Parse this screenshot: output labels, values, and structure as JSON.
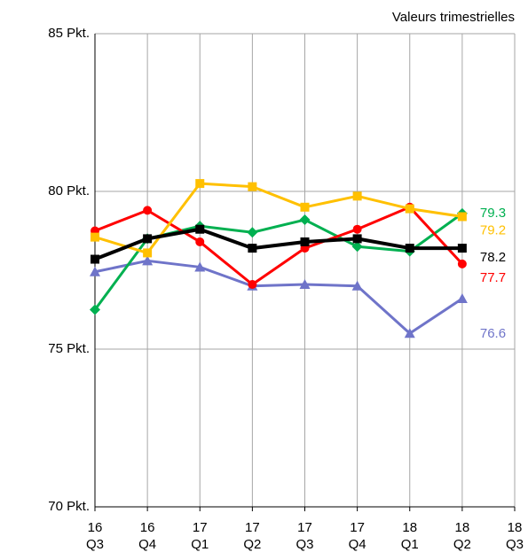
{
  "chart_data": {
    "type": "line",
    "title": "Valeurs trimestrielles",
    "categories": [
      "16 Q3",
      "16 Q4",
      "17 Q1",
      "17 Q2",
      "17 Q3",
      "17 Q4",
      "18 Q1",
      "18 Q2",
      "18 Q3"
    ],
    "ylim": [
      70,
      85
    ],
    "yticks": [
      {
        "value": 70,
        "label": "70 Pkt."
      },
      {
        "value": 75,
        "label": "75 Pkt."
      },
      {
        "value": 80,
        "label": "80 Pkt."
      },
      {
        "value": 85,
        "label": "85 Pkt."
      }
    ],
    "grid": true,
    "series": [
      {
        "color": "#6f74c9",
        "marker": "triangle",
        "values": [
          77.45,
          77.8,
          77.6,
          77.0,
          77.05,
          77.0,
          75.5,
          76.6,
          null
        ],
        "value_labels": [
          null,
          null,
          null,
          null,
          null,
          null,
          null,
          "76.6",
          null
        ]
      },
      {
        "color": "#00b050",
        "marker": "diamond",
        "values": [
          76.25,
          78.5,
          78.9,
          78.7,
          79.1,
          78.25,
          78.1,
          79.3,
          null
        ],
        "value_labels": [
          null,
          null,
          null,
          null,
          null,
          null,
          null,
          "79.3",
          null
        ]
      },
      {
        "color": "#ff0000",
        "marker": "circle",
        "values": [
          78.75,
          79.4,
          78.4,
          77.05,
          78.2,
          78.8,
          79.5,
          77.7,
          null
        ],
        "value_labels": [
          null,
          null,
          null,
          null,
          null,
          null,
          null,
          "77.7",
          null
        ]
      },
      {
        "color": "#ffc000",
        "marker": "square",
        "values": [
          78.55,
          78.05,
          80.25,
          80.15,
          79.5,
          79.85,
          79.45,
          79.2,
          null
        ],
        "value_labels": [
          null,
          null,
          null,
          null,
          null,
          null,
          null,
          "79.2",
          null
        ]
      },
      {
        "color": "#000000",
        "marker": "square",
        "width": 4,
        "values": [
          77.85,
          78.5,
          78.8,
          78.2,
          78.4,
          78.5,
          78.2,
          78.2,
          null
        ],
        "value_labels": [
          null,
          null,
          null,
          null,
          null,
          null,
          null,
          "78.2",
          null
        ]
      }
    ]
  }
}
